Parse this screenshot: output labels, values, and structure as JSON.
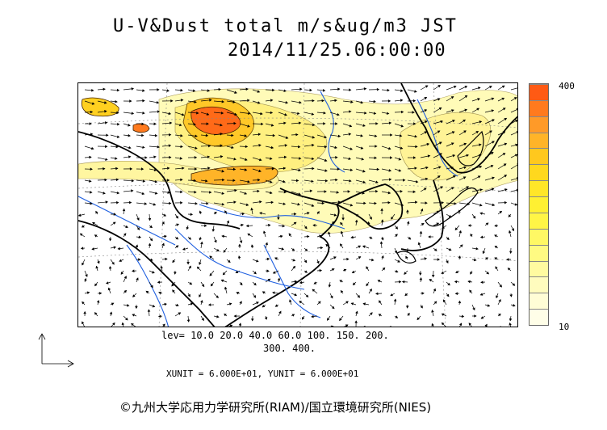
{
  "title": {
    "line1": "U-V&Dust total m/s&ug/m3 JST",
    "line2": "2014/11/25.06:00:00"
  },
  "map": {
    "colors": {
      "land_outline": "#000000",
      "rivers": "#1f5fe0",
      "grid": "#888888"
    }
  },
  "colorbar": {
    "top_label": "400",
    "bottom_label": "10",
    "colors": [
      "#ff5a14",
      "#ff7a1e",
      "#ff9a28",
      "#ffb428",
      "#ffc81e",
      "#ffd81e",
      "#ffe628",
      "#fff032",
      "#fff546",
      "#fff864",
      "#fffa82",
      "#fffba0",
      "#fffcbe",
      "#fffdd6",
      "#fffee8"
    ]
  },
  "levels": {
    "line1": "lev= 10.0 20.0 40.0 60.0 100. 150. 200.",
    "line2": "300. 400."
  },
  "units": {
    "text": "XUNIT = 6.000E+01, YUNIT = 6.000E+01"
  },
  "copyright": "©九州大学応用力学研究所(RIAM)/国立環境研究所(NIES)"
}
